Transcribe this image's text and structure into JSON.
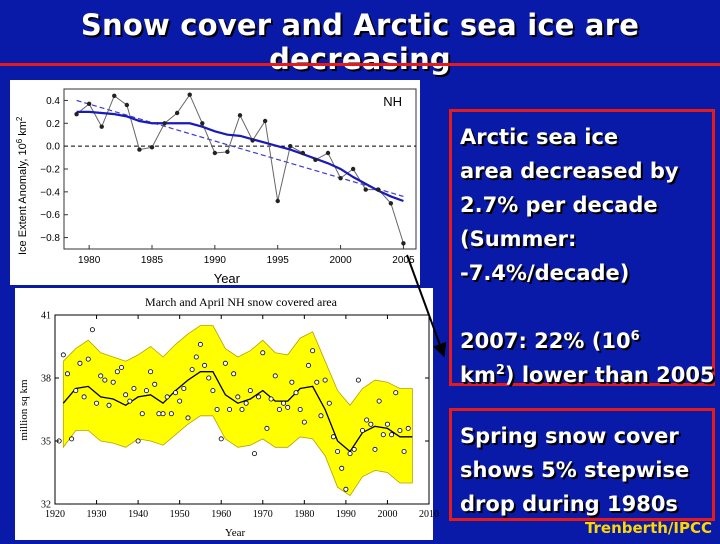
{
  "slide": {
    "title": "Snow cover and Arctic sea ice are decreasing",
    "credit": "Trenberth/IPCC",
    "colors": {
      "background": "#0a1aa8",
      "accent": "#e51a1a",
      "credit": "#ffd700"
    }
  },
  "ice_box": {
    "line1": "Arctic sea ice",
    "line2": "area decreased by",
    "line3": "2.7% per decade",
    "line4": "(Summer:",
    "line5": "-7.4%/decade)",
    "line6_pre": "2007: 22% (10",
    "line6_sup": "6",
    "line7_pre": "km",
    "line7_sup": "2",
    "line7_post": ") lower than 2005"
  },
  "snow_box": {
    "line1": "Spring snow cover",
    "line2": "shows 5% stepwise",
    "line3": "drop during 1980s"
  },
  "chart_data": [
    {
      "type": "line",
      "panel_label": "NH",
      "xlabel": "Year",
      "ylabel": "Ice Extent Anomaly, 10",
      "ylabel_sup": "6",
      "ylabel_unit": " km",
      "ylabel_unit_sup": "2",
      "xlim": [
        1978,
        2006
      ],
      "ylim": [
        -0.9,
        0.5
      ],
      "xticks": [
        1980,
        1985,
        1990,
        1995,
        2000,
        2005
      ],
      "yticks": [
        0.4,
        0.2,
        0.0,
        -0.2,
        -0.4,
        -0.6,
        -0.8
      ],
      "ytick_labels": [
        "0.4",
        "0.2",
        "0.0",
        "−0.2",
        "−0.4",
        "−0.6",
        "−0.8"
      ],
      "zero_line": "dashed",
      "series": [
        {
          "x": [
            1979,
            1980,
            1981,
            1982,
            1983,
            1984,
            1985,
            1986,
            1987,
            1988,
            1989,
            1990,
            1991,
            1992,
            1993,
            1994,
            1995,
            1996,
            1997,
            1998,
            1999,
            2000,
            2001,
            2002,
            2003,
            2004,
            2005
          ],
          "values": [
            0.28,
            0.37,
            0.17,
            0.44,
            0.36,
            -0.03,
            -0.01,
            0.2,
            0.29,
            0.45,
            0.2,
            -0.06,
            -0.05,
            0.27,
            0.05,
            0.22,
            -0.48,
            0.0,
            -0.06,
            -0.12,
            -0.06,
            -0.28,
            -0.2,
            -0.38,
            -0.38,
            -0.5,
            -0.85
          ],
          "style": "dots-and-line"
        },
        {
          "x": [
            1979,
            1980,
            1981,
            1982,
            1983,
            1984,
            1985,
            1986,
            1987,
            1988,
            1989,
            1990,
            1991,
            1992,
            1993,
            1994,
            1995,
            1996,
            1997,
            1998,
            1999,
            2000,
            2001,
            2002,
            2003,
            2004,
            2005
          ],
          "values": [
            0.3,
            0.3,
            0.29,
            0.28,
            0.26,
            0.22,
            0.2,
            0.2,
            0.2,
            0.2,
            0.17,
            0.13,
            0.1,
            0.09,
            0.06,
            0.03,
            0.0,
            -0.03,
            -0.07,
            -0.11,
            -0.15,
            -0.2,
            -0.27,
            -0.33,
            -0.39,
            -0.44,
            -0.48
          ],
          "style": "smooth"
        },
        {
          "x": [
            1979,
            2005
          ],
          "values": [
            0.4,
            -0.44
          ],
          "style": "dashed-trend"
        }
      ]
    },
    {
      "type": "scatter",
      "title": "March and April NH snow covered area",
      "xlabel": "Year",
      "ylabel": "million sq km",
      "xlim": [
        1920,
        2010
      ],
      "ylim": [
        32,
        41
      ],
      "xticks": [
        1920,
        1930,
        1940,
        1950,
        1960,
        1970,
        1980,
        1990,
        2000,
        2010
      ],
      "yticks": [
        32,
        35,
        38,
        41
      ],
      "smooth": {
        "x": [
          1922,
          1925,
          1928,
          1931,
          1934,
          1937,
          1940,
          1943,
          1946,
          1949,
          1952,
          1955,
          1958,
          1961,
          1964,
          1967,
          1970,
          1973,
          1976,
          1979,
          1982,
          1985,
          1988,
          1991,
          1994,
          1997,
          2000,
          2003,
          2006
        ],
        "values": [
          36.8,
          37.5,
          37.6,
          37.1,
          37.0,
          36.7,
          37.1,
          37.2,
          36.8,
          37.4,
          37.9,
          38.3,
          38.3,
          37.2,
          36.8,
          37.0,
          37.4,
          36.9,
          36.9,
          37.5,
          37.6,
          36.5,
          35.0,
          34.5,
          35.4,
          35.7,
          35.6,
          35.2,
          35.2
        ]
      },
      "band": {
        "x": [
          1922,
          1925,
          1928,
          1931,
          1934,
          1937,
          1940,
          1943,
          1946,
          1949,
          1952,
          1955,
          1958,
          1961,
          1964,
          1967,
          1970,
          1973,
          1976,
          1979,
          1982,
          1985,
          1988,
          1991,
          1994,
          1997,
          2000,
          2003,
          2006
        ],
        "upper": [
          38.8,
          39.4,
          39.8,
          39.2,
          39.0,
          38.8,
          39.1,
          39.5,
          39.0,
          39.6,
          40.1,
          40.5,
          40.5,
          39.4,
          39.0,
          39.3,
          39.8,
          39.2,
          39.1,
          39.9,
          40.2,
          38.8,
          37.4,
          36.7,
          37.5,
          37.9,
          37.8,
          37.5,
          37.5
        ],
        "lower": [
          34.7,
          35.5,
          35.5,
          35.0,
          34.9,
          34.7,
          35.1,
          35.0,
          34.8,
          35.3,
          35.8,
          36.2,
          36.2,
          35.1,
          34.7,
          34.8,
          35.1,
          34.7,
          34.7,
          35.2,
          35.1,
          34.3,
          32.8,
          32.4,
          33.3,
          33.6,
          33.5,
          33.0,
          33.0
        ]
      },
      "points": {
        "x": [
          1921,
          1922,
          1923,
          1924,
          1925,
          1926,
          1927,
          1928,
          1929,
          1930,
          1931,
          1932,
          1933,
          1934,
          1935,
          1936,
          1937,
          1938,
          1939,
          1940,
          1941,
          1942,
          1943,
          1944,
          1945,
          1946,
          1947,
          1948,
          1949,
          1950,
          1951,
          1952,
          1953,
          1954,
          1955,
          1956,
          1957,
          1958,
          1959,
          1960,
          1961,
          1962,
          1963,
          1964,
          1965,
          1966,
          1967,
          1968,
          1969,
          1970,
          1971,
          1972,
          1973,
          1974,
          1975,
          1976,
          1977,
          1978,
          1979,
          1980,
          1981,
          1982,
          1983,
          1984,
          1985,
          1986,
          1987,
          1988,
          1989,
          1990,
          1991,
          1992,
          1993,
          1994,
          1995,
          1996,
          1997,
          1998,
          1999,
          2000,
          2001,
          2002,
          2003,
          2004,
          2005
        ],
        "values": [
          35.0,
          39.1,
          38.2,
          35.1,
          37.4,
          38.7,
          37.1,
          38.9,
          40.3,
          36.8,
          38.1,
          37.9,
          36.7,
          37.8,
          38.3,
          38.5,
          37.2,
          36.9,
          37.5,
          35.0,
          36.3,
          37.4,
          38.3,
          37.7,
          36.3,
          36.3,
          37.1,
          36.3,
          37.3,
          36.9,
          37.5,
          36.1,
          38.4,
          39.0,
          39.6,
          38.6,
          38.0,
          37.4,
          36.5,
          35.1,
          38.7,
          36.5,
          38.2,
          37.1,
          36.5,
          36.8,
          37.4,
          34.4,
          37.1,
          39.2,
          35.6,
          37.0,
          38.1,
          36.5,
          36.8,
          36.6,
          37.8,
          37.3,
          36.5,
          35.9,
          38.6,
          39.3,
          37.8,
          36.2,
          37.9,
          36.8,
          35.2,
          34.5,
          33.7,
          32.7,
          34.4,
          34.6,
          37.9,
          35.5,
          36.0,
          35.8,
          34.6,
          36.9,
          35.3,
          35.8,
          35.3,
          37.3,
          35.5,
          34.5,
          35.6
        ]
      }
    }
  ]
}
